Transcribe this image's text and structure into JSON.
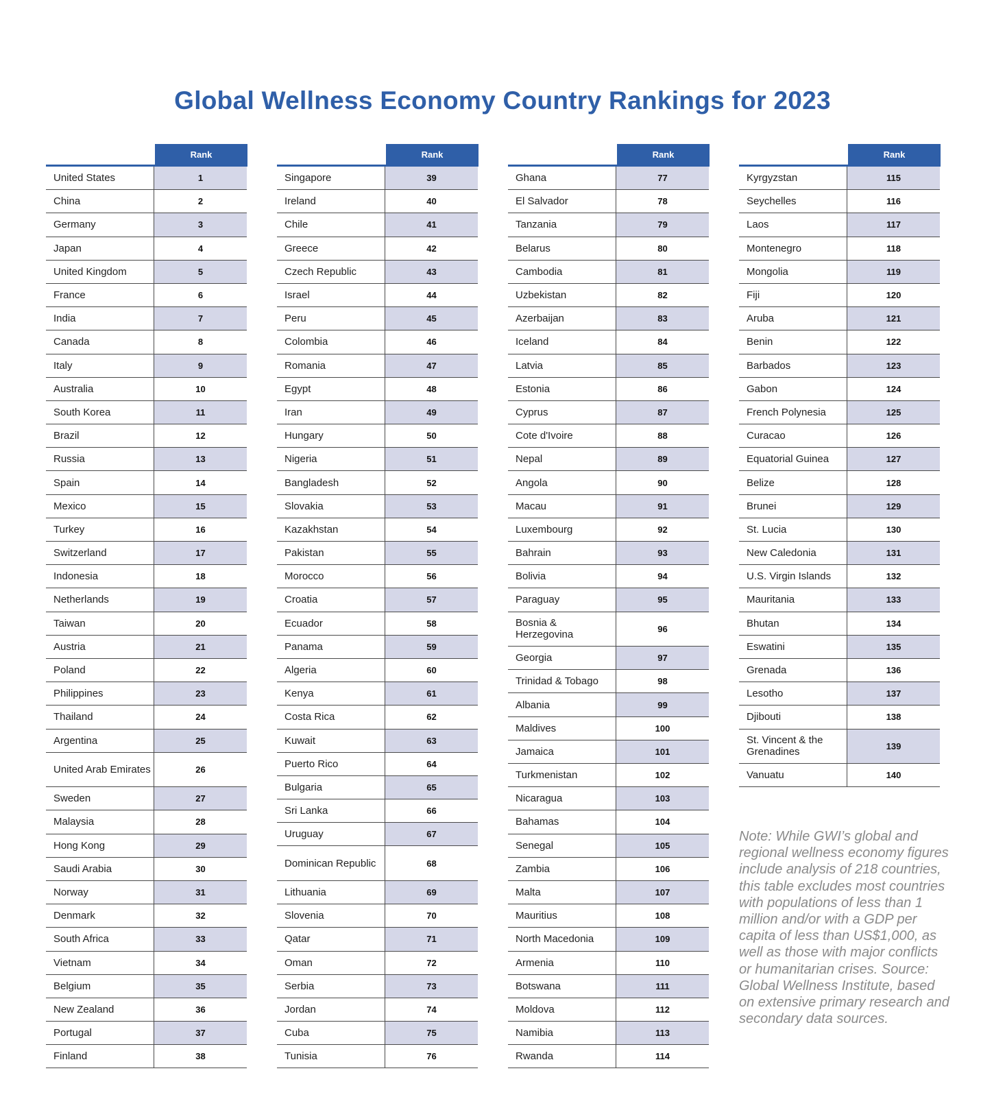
{
  "title": "Global Wellness Economy Country Rankings for 2023",
  "header": "Rank",
  "columns": [
    [
      {
        "country": "United States",
        "rank": "1"
      },
      {
        "country": "China",
        "rank": "2"
      },
      {
        "country": "Germany",
        "rank": "3"
      },
      {
        "country": "Japan",
        "rank": "4"
      },
      {
        "country": "United Kingdom",
        "rank": "5"
      },
      {
        "country": "France",
        "rank": "6"
      },
      {
        "country": "India",
        "rank": "7"
      },
      {
        "country": "Canada",
        "rank": "8"
      },
      {
        "country": "Italy",
        "rank": "9"
      },
      {
        "country": "Australia",
        "rank": "10"
      },
      {
        "country": "South Korea",
        "rank": "11"
      },
      {
        "country": "Brazil",
        "rank": "12"
      },
      {
        "country": "Russia",
        "rank": "13"
      },
      {
        "country": "Spain",
        "rank": "14"
      },
      {
        "country": "Mexico",
        "rank": "15"
      },
      {
        "country": "Turkey",
        "rank": "16"
      },
      {
        "country": "Switzerland",
        "rank": "17"
      },
      {
        "country": "Indonesia",
        "rank": "18"
      },
      {
        "country": "Netherlands",
        "rank": "19"
      },
      {
        "country": "Taiwan",
        "rank": "20"
      },
      {
        "country": "Austria",
        "rank": "21"
      },
      {
        "country": "Poland",
        "rank": "22"
      },
      {
        "country": "Philippines",
        "rank": "23"
      },
      {
        "country": "Thailand",
        "rank": "24"
      },
      {
        "country": "Argentina",
        "rank": "25"
      },
      {
        "country": "United Arab Emirates",
        "rank": "26"
      },
      {
        "country": "Sweden",
        "rank": "27"
      },
      {
        "country": "Malaysia",
        "rank": "28"
      },
      {
        "country": "Hong Kong",
        "rank": "29"
      },
      {
        "country": "Saudi Arabia",
        "rank": "30"
      },
      {
        "country": "Norway",
        "rank": "31"
      },
      {
        "country": "Denmark",
        "rank": "32"
      },
      {
        "country": "South Africa",
        "rank": "33"
      },
      {
        "country": "Vietnam",
        "rank": "34"
      },
      {
        "country": "Belgium",
        "rank": "35"
      },
      {
        "country": "New Zealand",
        "rank": "36"
      },
      {
        "country": "Portugal",
        "rank": "37"
      },
      {
        "country": "Finland",
        "rank": "38"
      }
    ],
    [
      {
        "country": "Singapore",
        "rank": "39"
      },
      {
        "country": "Ireland",
        "rank": "40"
      },
      {
        "country": "Chile",
        "rank": "41"
      },
      {
        "country": "Greece",
        "rank": "42"
      },
      {
        "country": "Czech Republic",
        "rank": "43"
      },
      {
        "country": "Israel",
        "rank": "44"
      },
      {
        "country": "Peru",
        "rank": "45"
      },
      {
        "country": "Colombia",
        "rank": "46"
      },
      {
        "country": "Romania",
        "rank": "47"
      },
      {
        "country": "Egypt",
        "rank": "48"
      },
      {
        "country": "Iran",
        "rank": "49"
      },
      {
        "country": "Hungary",
        "rank": "50"
      },
      {
        "country": "Nigeria",
        "rank": "51"
      },
      {
        "country": "Bangladesh",
        "rank": "52"
      },
      {
        "country": "Slovakia",
        "rank": "53"
      },
      {
        "country": "Kazakhstan",
        "rank": "54"
      },
      {
        "country": "Pakistan",
        "rank": "55"
      },
      {
        "country": "Morocco",
        "rank": "56"
      },
      {
        "country": "Croatia",
        "rank": "57"
      },
      {
        "country": "Ecuador",
        "rank": "58"
      },
      {
        "country": "Panama",
        "rank": "59"
      },
      {
        "country": "Algeria",
        "rank": "60"
      },
      {
        "country": "Kenya",
        "rank": "61"
      },
      {
        "country": "Costa Rica",
        "rank": "62"
      },
      {
        "country": "Kuwait",
        "rank": "63"
      },
      {
        "country": "Puerto Rico",
        "rank": "64"
      },
      {
        "country": "Bulgaria",
        "rank": "65"
      },
      {
        "country": "Sri Lanka",
        "rank": "66"
      },
      {
        "country": "Uruguay",
        "rank": "67"
      },
      {
        "country": "Dominican Republic",
        "rank": "68"
      },
      {
        "country": "Lithuania",
        "rank": "69"
      },
      {
        "country": "Slovenia",
        "rank": "70"
      },
      {
        "country": "Qatar",
        "rank": "71"
      },
      {
        "country": "Oman",
        "rank": "72"
      },
      {
        "country": "Serbia",
        "rank": "73"
      },
      {
        "country": "Jordan",
        "rank": "74"
      },
      {
        "country": "Cuba",
        "rank": "75"
      },
      {
        "country": "Tunisia",
        "rank": "76"
      }
    ],
    [
      {
        "country": "Ghana",
        "rank": "77"
      },
      {
        "country": "El Salvador",
        "rank": "78"
      },
      {
        "country": "Tanzania",
        "rank": "79"
      },
      {
        "country": "Belarus",
        "rank": "80"
      },
      {
        "country": "Cambodia",
        "rank": "81"
      },
      {
        "country": "Uzbekistan",
        "rank": "82"
      },
      {
        "country": "Azerbaijan",
        "rank": "83"
      },
      {
        "country": "Iceland",
        "rank": "84"
      },
      {
        "country": "Latvia",
        "rank": "85"
      },
      {
        "country": "Estonia",
        "rank": "86"
      },
      {
        "country": "Cyprus",
        "rank": "87"
      },
      {
        "country": "Cote d'Ivoire",
        "rank": "88"
      },
      {
        "country": "Nepal",
        "rank": "89"
      },
      {
        "country": "Angola",
        "rank": "90"
      },
      {
        "country": "Macau",
        "rank": "91"
      },
      {
        "country": "Luxembourg",
        "rank": "92"
      },
      {
        "country": "Bahrain",
        "rank": "93"
      },
      {
        "country": "Bolivia",
        "rank": "94"
      },
      {
        "country": "Paraguay",
        "rank": "95"
      },
      {
        "country": "Bosnia & Herzegovina",
        "rank": "96"
      },
      {
        "country": "Georgia",
        "rank": "97"
      },
      {
        "country": "Trinidad & Tobago",
        "rank": "98"
      },
      {
        "country": "Albania",
        "rank": "99"
      },
      {
        "country": "Maldives",
        "rank": "100"
      },
      {
        "country": "Jamaica",
        "rank": "101"
      },
      {
        "country": "Turkmenistan",
        "rank": "102"
      },
      {
        "country": "Nicaragua",
        "rank": "103"
      },
      {
        "country": "Bahamas",
        "rank": "104"
      },
      {
        "country": "Senegal",
        "rank": "105"
      },
      {
        "country": "Zambia",
        "rank": "106"
      },
      {
        "country": "Malta",
        "rank": "107"
      },
      {
        "country": "Mauritius",
        "rank": "108"
      },
      {
        "country": "North Macedonia",
        "rank": "109"
      },
      {
        "country": "Armenia",
        "rank": "110"
      },
      {
        "country": "Botswana",
        "rank": "111"
      },
      {
        "country": "Moldova",
        "rank": "112"
      },
      {
        "country": "Namibia",
        "rank": "113"
      },
      {
        "country": "Rwanda",
        "rank": "114"
      }
    ],
    [
      {
        "country": "Kyrgyzstan",
        "rank": "115"
      },
      {
        "country": "Seychelles",
        "rank": "116"
      },
      {
        "country": "Laos",
        "rank": "117"
      },
      {
        "country": "Montenegro",
        "rank": "118"
      },
      {
        "country": "Mongolia",
        "rank": "119"
      },
      {
        "country": "Fiji",
        "rank": "120"
      },
      {
        "country": "Aruba",
        "rank": "121"
      },
      {
        "country": "Benin",
        "rank": "122"
      },
      {
        "country": "Barbados",
        "rank": "123"
      },
      {
        "country": "Gabon",
        "rank": "124"
      },
      {
        "country": "French Polynesia",
        "rank": "125"
      },
      {
        "country": "Curacao",
        "rank": "126"
      },
      {
        "country": "Equatorial Guinea",
        "rank": "127"
      },
      {
        "country": "Belize",
        "rank": "128"
      },
      {
        "country": "Brunei",
        "rank": "129"
      },
      {
        "country": "St. Lucia",
        "rank": "130"
      },
      {
        "country": "New Caledonia",
        "rank": "131"
      },
      {
        "country": "U.S. Virgin Islands",
        "rank": "132"
      },
      {
        "country": "Mauritania",
        "rank": "133"
      },
      {
        "country": "Bhutan",
        "rank": "134"
      },
      {
        "country": "Eswatini",
        "rank": "135"
      },
      {
        "country": "Grenada",
        "rank": "136"
      },
      {
        "country": "Lesotho",
        "rank": "137"
      },
      {
        "country": "Djibouti",
        "rank": "138"
      },
      {
        "country": "St. Vincent & the Grenadines",
        "rank": "139"
      },
      {
        "country": "Vanuatu",
        "rank": "140"
      }
    ]
  ],
  "note": "Note: While GWI’s global and regional wellness economy figures include analysis of 218 countries, this table excludes most countries with populations of less than 1 million and/or with a GDP per capita of less than US$1,000, as well as those with major conflicts or humanitarian crises. Source: Global Wellness Institute, based on extensive primary research and secondary data sources.",
  "colors": {
    "accent": "#2f5fa8",
    "shade": "#d5d7e8",
    "note": "#8a8a8a"
  }
}
